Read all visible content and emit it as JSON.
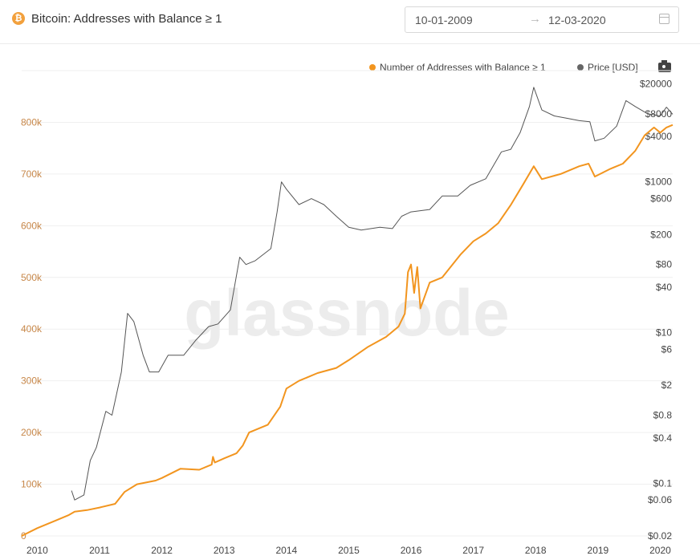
{
  "header": {
    "title": "Bitcoin: Addresses with Balance ≥ 1",
    "date_from": "10-01-2009",
    "date_to": "12-03-2020",
    "arrow": "→"
  },
  "watermark": "glassnode",
  "legend": {
    "addresses": "Number of Addresses with Balance ≥ 1",
    "price": "Price [USD]"
  },
  "colors": {
    "addresses": "#f2951f",
    "price": "#555555",
    "left_axis_text": "#c8884a"
  },
  "chart_data": {
    "type": "line",
    "title": "Bitcoin: Addresses with Balance ≥ 1",
    "x_ticks": [
      "2010",
      "2011",
      "2012",
      "2013",
      "2014",
      "2015",
      "2016",
      "2017",
      "2018",
      "2019",
      "2020"
    ],
    "x_range": [
      "2009-10-01",
      "2020-03-12"
    ],
    "y_left": {
      "label": "Number of Addresses with Balance ≥ 1",
      "range": [
        0,
        900000
      ],
      "ticks": [
        "0",
        "100k",
        "200k",
        "300k",
        "400k",
        "500k",
        "600k",
        "700k",
        "800k"
      ]
    },
    "y_right": {
      "label": "Price [USD]",
      "scale": "log",
      "range": [
        0.02,
        30000
      ],
      "ticks": [
        "$0.02",
        "$0.06",
        "$0.1",
        "$0.4",
        "$0.8",
        "$2",
        "$6",
        "$10",
        "$40",
        "$80",
        "$200",
        "$600",
        "$1000",
        "$4000",
        "$8000",
        "$20000"
      ],
      "tick_values": [
        0.02,
        0.06,
        0.1,
        0.4,
        0.8,
        2,
        6,
        10,
        40,
        80,
        200,
        600,
        1000,
        4000,
        8000,
        20000
      ]
    },
    "grid": "horizontal",
    "series": [
      {
        "name": "Number of Addresses with Balance ≥ 1",
        "axis": "left",
        "points": [
          [
            2009.75,
            0
          ],
          [
            2010.0,
            15000
          ],
          [
            2010.3,
            30000
          ],
          [
            2010.5,
            40000
          ],
          [
            2010.6,
            47000
          ],
          [
            2010.8,
            50000
          ],
          [
            2011.0,
            55000
          ],
          [
            2011.25,
            62000
          ],
          [
            2011.4,
            85000
          ],
          [
            2011.6,
            100000
          ],
          [
            2011.9,
            107000
          ],
          [
            2012.0,
            112000
          ],
          [
            2012.3,
            130000
          ],
          [
            2012.6,
            128000
          ],
          [
            2012.8,
            138000
          ],
          [
            2012.82,
            153000
          ],
          [
            2012.85,
            142000
          ],
          [
            2013.0,
            150000
          ],
          [
            2013.2,
            160000
          ],
          [
            2013.3,
            175000
          ],
          [
            2013.4,
            200000
          ],
          [
            2013.7,
            215000
          ],
          [
            2013.9,
            250000
          ],
          [
            2014.0,
            285000
          ],
          [
            2014.2,
            300000
          ],
          [
            2014.5,
            315000
          ],
          [
            2014.8,
            325000
          ],
          [
            2015.0,
            340000
          ],
          [
            2015.3,
            365000
          ],
          [
            2015.6,
            385000
          ],
          [
            2015.8,
            405000
          ],
          [
            2015.9,
            430000
          ],
          [
            2015.95,
            510000
          ],
          [
            2016.0,
            525000
          ],
          [
            2016.05,
            470000
          ],
          [
            2016.1,
            520000
          ],
          [
            2016.15,
            440000
          ],
          [
            2016.3,
            490000
          ],
          [
            2016.5,
            500000
          ],
          [
            2016.8,
            545000
          ],
          [
            2017.0,
            570000
          ],
          [
            2017.2,
            585000
          ],
          [
            2017.4,
            605000
          ],
          [
            2017.6,
            640000
          ],
          [
            2017.8,
            680000
          ],
          [
            2017.97,
            715000
          ],
          [
            2018.1,
            690000
          ],
          [
            2018.4,
            700000
          ],
          [
            2018.7,
            715000
          ],
          [
            2018.85,
            720000
          ],
          [
            2018.95,
            695000
          ],
          [
            2019.2,
            710000
          ],
          [
            2019.4,
            720000
          ],
          [
            2019.6,
            745000
          ],
          [
            2019.75,
            775000
          ],
          [
            2019.9,
            790000
          ],
          [
            2020.0,
            780000
          ],
          [
            2020.1,
            790000
          ],
          [
            2020.2,
            795000
          ]
        ]
      },
      {
        "name": "Price [USD]",
        "axis": "right",
        "points": [
          [
            2010.55,
            0.08
          ],
          [
            2010.6,
            0.06
          ],
          [
            2010.75,
            0.07
          ],
          [
            2010.85,
            0.2
          ],
          [
            2010.95,
            0.3
          ],
          [
            2011.1,
            0.9
          ],
          [
            2011.2,
            0.8
          ],
          [
            2011.35,
            3
          ],
          [
            2011.45,
            18
          ],
          [
            2011.55,
            14
          ],
          [
            2011.7,
            5
          ],
          [
            2011.8,
            3
          ],
          [
            2011.95,
            3
          ],
          [
            2012.1,
            5
          ],
          [
            2012.35,
            5
          ],
          [
            2012.55,
            8
          ],
          [
            2012.75,
            12
          ],
          [
            2012.9,
            13
          ],
          [
            2013.1,
            20
          ],
          [
            2013.25,
            100
          ],
          [
            2013.35,
            80
          ],
          [
            2013.5,
            90
          ],
          [
            2013.75,
            130
          ],
          [
            2013.85,
            400
          ],
          [
            2013.92,
            1000
          ],
          [
            2014.0,
            800
          ],
          [
            2014.2,
            500
          ],
          [
            2014.4,
            600
          ],
          [
            2014.6,
            500
          ],
          [
            2014.8,
            350
          ],
          [
            2015.0,
            250
          ],
          [
            2015.2,
            230
          ],
          [
            2015.5,
            250
          ],
          [
            2015.7,
            240
          ],
          [
            2015.85,
            350
          ],
          [
            2016.0,
            400
          ],
          [
            2016.3,
            430
          ],
          [
            2016.5,
            650
          ],
          [
            2016.75,
            650
          ],
          [
            2016.95,
            900
          ],
          [
            2017.2,
            1100
          ],
          [
            2017.45,
            2500
          ],
          [
            2017.6,
            2700
          ],
          [
            2017.75,
            4500
          ],
          [
            2017.9,
            10000
          ],
          [
            2017.97,
            18000
          ],
          [
            2018.1,
            9000
          ],
          [
            2018.3,
            7500
          ],
          [
            2018.5,
            7000
          ],
          [
            2018.7,
            6500
          ],
          [
            2018.87,
            6300
          ],
          [
            2018.95,
            3500
          ],
          [
            2019.1,
            3800
          ],
          [
            2019.3,
            5500
          ],
          [
            2019.45,
            12000
          ],
          [
            2019.6,
            10000
          ],
          [
            2019.8,
            8000
          ],
          [
            2020.0,
            7500
          ],
          [
            2020.1,
            9800
          ],
          [
            2020.2,
            7900
          ]
        ]
      }
    ]
  }
}
